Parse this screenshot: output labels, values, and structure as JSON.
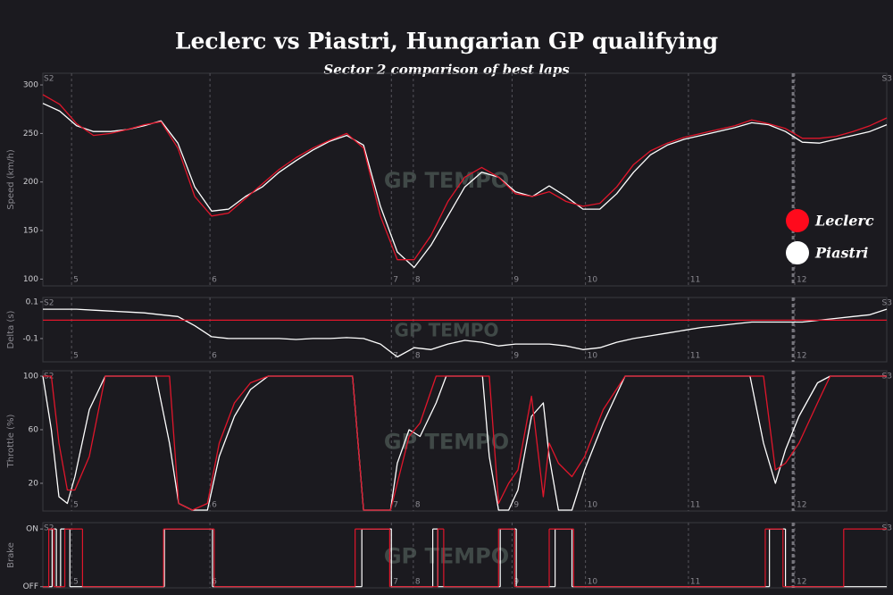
{
  "title": "Leclerc vs Piastri, Hungarian GP qualifying",
  "subtitle": "Sector 2 comparison of best laps",
  "watermark": "GP TEMPO",
  "sector_start": "S2",
  "sector_end": "S3",
  "marker_x": 88.9,
  "turns": [
    {
      "x": 3.4,
      "label": "5"
    },
    {
      "x": 19.8,
      "label": "6"
    },
    {
      "x": 41.3,
      "label": "7"
    },
    {
      "x": 43.9,
      "label": "8"
    },
    {
      "x": 55.6,
      "label": "9"
    },
    {
      "x": 64.3,
      "label": "10"
    },
    {
      "x": 76.5,
      "label": "11"
    },
    {
      "x": 89.1,
      "label": "12"
    }
  ],
  "chart_data": [
    {
      "type": "line",
      "ylabel": "Speed (km/h)",
      "legend": "right",
      "xlim": [
        0,
        100
      ],
      "ylim": [
        93,
        312
      ],
      "yticks": [
        100,
        150,
        200,
        250,
        300
      ],
      "x": [
        0,
        2,
        4,
        6,
        8,
        10,
        12,
        14,
        16,
        18,
        20,
        22,
        24,
        26,
        28,
        30,
        32,
        34,
        36,
        38,
        40,
        42,
        44,
        46,
        48,
        50,
        52,
        54,
        56,
        58,
        60,
        62,
        64,
        66,
        68,
        70,
        72,
        74,
        76,
        78,
        80,
        82,
        84,
        86,
        88,
        90,
        92,
        94,
        96,
        98,
        100
      ],
      "series": [
        {
          "name": "Leclerc",
          "color": "#e0162b",
          "values": [
            290,
            280,
            260,
            248,
            250,
            254,
            259,
            262,
            235,
            185,
            165,
            168,
            183,
            198,
            213,
            225,
            235,
            243,
            250,
            235,
            165,
            120,
            120,
            145,
            180,
            205,
            215,
            205,
            188,
            185,
            190,
            180,
            175,
            178,
            195,
            218,
            232,
            240,
            246,
            250,
            254,
            258,
            264,
            260,
            255,
            245,
            245,
            247,
            252,
            258,
            266
          ]
        },
        {
          "name": "Piastri",
          "color": "#ffffff",
          "values": [
            281,
            273,
            258,
            252,
            252,
            254,
            258,
            263,
            240,
            195,
            170,
            172,
            185,
            195,
            210,
            222,
            233,
            242,
            248,
            238,
            175,
            128,
            112,
            135,
            165,
            195,
            210,
            205,
            190,
            185,
            196,
            185,
            172,
            172,
            188,
            210,
            228,
            238,
            244,
            248,
            252,
            256,
            261,
            259,
            252,
            241,
            240,
            244,
            248,
            252,
            259
          ]
        }
      ]
    },
    {
      "type": "line",
      "ylabel": "Delta (s)",
      "xlim": [
        0,
        100
      ],
      "ylim": [
        -0.227,
        0.124
      ],
      "yticks": [
        -0.1,
        0.1
      ],
      "x": [
        0,
        2,
        4,
        6,
        8,
        10,
        12,
        14,
        16,
        18,
        20,
        22,
        24,
        26,
        28,
        30,
        32,
        34,
        36,
        38,
        40,
        42,
        44,
        46,
        48,
        50,
        52,
        54,
        56,
        58,
        60,
        62,
        64,
        66,
        68,
        70,
        72,
        74,
        76,
        78,
        80,
        82,
        84,
        86,
        88,
        90,
        92,
        94,
        96,
        98,
        100
      ],
      "series": [
        {
          "name": "Leclerc",
          "color": "#e0162b",
          "values": [
            0,
            0,
            0,
            0,
            0,
            0,
            0,
            0,
            0,
            0,
            0,
            0,
            0,
            0,
            0,
            0,
            0,
            0,
            0,
            0,
            0,
            0,
            0,
            0,
            0,
            0,
            0,
            0,
            0,
            0,
            0,
            0,
            0,
            0,
            0,
            0,
            0,
            0,
            0,
            0,
            0,
            0,
            0,
            0,
            0,
            0,
            0,
            0,
            0,
            0,
            0
          ]
        },
        {
          "name": "Piastri",
          "color": "#ffffff",
          "values": [
            0.06,
            0.06,
            0.06,
            0.055,
            0.05,
            0.045,
            0.04,
            0.03,
            0.02,
            -0.03,
            -0.09,
            -0.1,
            -0.1,
            -0.1,
            -0.1,
            -0.105,
            -0.1,
            -0.1,
            -0.095,
            -0.1,
            -0.13,
            -0.2,
            -0.15,
            -0.16,
            -0.13,
            -0.11,
            -0.12,
            -0.14,
            -0.13,
            -0.13,
            -0.13,
            -0.14,
            -0.16,
            -0.15,
            -0.12,
            -0.1,
            -0.085,
            -0.07,
            -0.055,
            -0.04,
            -0.03,
            -0.02,
            -0.01,
            -0.01,
            -0.01,
            -0.01,
            0,
            0.01,
            0.02,
            0.03,
            0.06
          ]
        }
      ]
    },
    {
      "type": "line",
      "ylabel": "Throttle (%)",
      "xlim": [
        0,
        100
      ],
      "ylim": [
        -0.7,
        104
      ],
      "yticks": [
        20,
        60,
        100
      ],
      "x": [
        0,
        1,
        1.9,
        2.9,
        3.8,
        5.5,
        7.4,
        13.4,
        15,
        16.1,
        17.7,
        19.5,
        20.9,
        22.7,
        24.6,
        26.7,
        36.7,
        38,
        41.2,
        42,
        43.4,
        44.7,
        46.6,
        47.8,
        52.1,
        52.9,
        54,
        55.2,
        56.3,
        57.9,
        59.3,
        60,
        61.1,
        62.7,
        64.2,
        66.4,
        69,
        83.8,
        85.4,
        86.8,
        88,
        89.6,
        91.8,
        93.3,
        100
      ],
      "series": [
        {
          "name": "Leclerc",
          "color": "#e0162b",
          "values": [
            100,
            100,
            50,
            15,
            15,
            40,
            100,
            100,
            100,
            5,
            0,
            5,
            50,
            80,
            95,
            100,
            100,
            0,
            0,
            20,
            55,
            65,
            100,
            100,
            100,
            100,
            5,
            20,
            30,
            85,
            10,
            50,
            35,
            25,
            40,
            75,
            100,
            100,
            100,
            30,
            35,
            50,
            80,
            100,
            100
          ]
        },
        {
          "name": "Piastri",
          "color": "#ffffff",
          "values": [
            100,
            60,
            10,
            5,
            25,
            75,
            100,
            100,
            50,
            5,
            0,
            0,
            40,
            70,
            90,
            100,
            100,
            0,
            0,
            35,
            60,
            55,
            80,
            100,
            100,
            40,
            0,
            0,
            15,
            70,
            80,
            40,
            0,
            0,
            30,
            65,
            100,
            100,
            50,
            20,
            45,
            70,
            95,
            100,
            100
          ]
        }
      ]
    },
    {
      "type": "step",
      "ylabel": "Brake",
      "xlim": [
        0,
        100
      ],
      "ylim": [
        -0.02,
        1.11
      ],
      "yticks": [
        {
          "value": 0,
          "label": "OFF"
        },
        {
          "value": 1,
          "label": "ON"
        }
      ],
      "series": [
        {
          "name": "Leclerc",
          "color": "#e0162b",
          "x": [
            0,
            0.7,
            1.3,
            2.6,
            4.7,
            14.3,
            20.3,
            37.0,
            41.1,
            46.8,
            47.5,
            54.0,
            55.9,
            60.0,
            62.9,
            85.6,
            87.7,
            94.9,
            100
          ],
          "values": [
            0,
            1,
            0,
            1,
            0,
            1,
            0,
            1,
            0,
            1,
            0,
            1,
            0,
            1,
            0,
            1,
            0,
            1,
            1
          ]
        },
        {
          "name": "Piastri",
          "color": "#ffffff",
          "x": [
            0,
            1.1,
            1.6,
            2.1,
            3.2,
            14.4,
            20.1,
            37.8,
            41.3,
            46.2,
            46.8,
            54.2,
            56.1,
            60.7,
            62.7,
            86.1,
            88.0,
            100
          ],
          "values": [
            0,
            1,
            0,
            1,
            0,
            1,
            0,
            1,
            0,
            1,
            0,
            1,
            0,
            1,
            0,
            1,
            0,
            0
          ]
        }
      ]
    }
  ]
}
